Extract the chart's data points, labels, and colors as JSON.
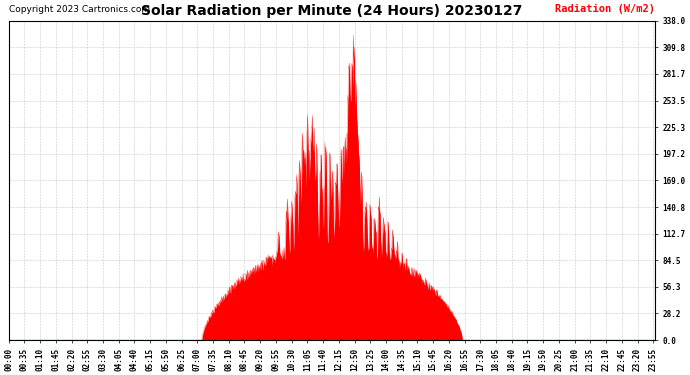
{
  "title": "Solar Radiation per Minute (24 Hours) 20230127",
  "copyright": "Copyright 2023 Cartronics.com",
  "ylabel": "Radiation (W/m2)",
  "ylabel_color": "#FF0000",
  "background_color": "#ffffff",
  "plot_bg_color": "#ffffff",
  "bar_color": "#FF0000",
  "grid_color": "#bbbbbb",
  "yticks": [
    0.0,
    28.2,
    56.3,
    84.5,
    112.7,
    140.8,
    169.0,
    197.2,
    225.3,
    253.5,
    281.7,
    309.8,
    338.0
  ],
  "ymax": 338.0,
  "ymin": 0.0,
  "copyright_fontsize": 6.5,
  "title_fontsize": 10,
  "ylabel_fontsize": 7.5,
  "tick_fontsize": 5.5,
  "figsize": [
    6.9,
    3.75
  ],
  "dpi": 100
}
